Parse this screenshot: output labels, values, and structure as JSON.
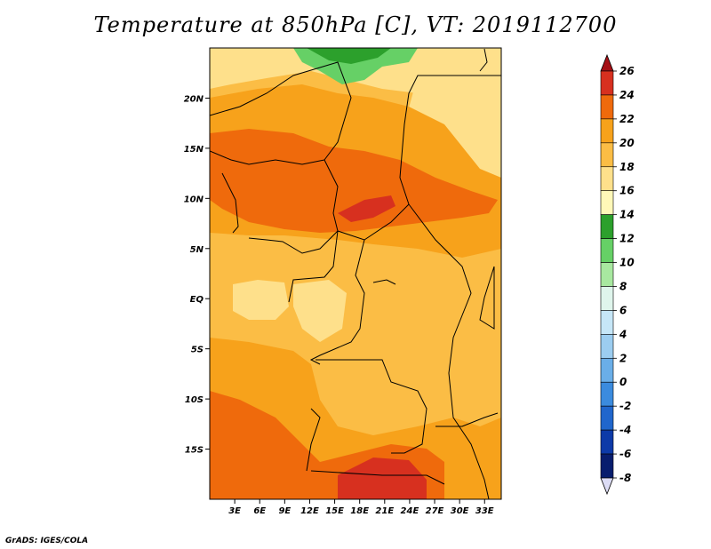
{
  "title": "Temperature at 850hPa [C], VT: 2019112700",
  "credit": "GrADS: IGES/COLA",
  "map": {
    "lon_range": [
      0,
      35
    ],
    "lat_range": [
      -20,
      25
    ],
    "lon_ticks": [
      "3E",
      "6E",
      "9E",
      "12E",
      "15E",
      "18E",
      "21E",
      "24E",
      "27E",
      "30E",
      "33E"
    ],
    "lat_ticks": [
      "20N",
      "15N",
      "10N",
      "5N",
      "EQ",
      "5S",
      "10S",
      "15S"
    ]
  },
  "colorbar": {
    "labels": [
      "26",
      "24",
      "22",
      "20",
      "18",
      "16",
      "14",
      "12",
      "10",
      "8",
      "6",
      "4",
      "2",
      "0",
      "-2",
      "-4",
      "-6",
      "-8"
    ],
    "colors": [
      "#a50f15",
      "#d7301f",
      "#ef6a0c",
      "#f7a21b",
      "#fbbd45",
      "#fee08b",
      "#fff8b8",
      "#2ca02c",
      "#66d066",
      "#a8e8a0",
      "#dff5ec",
      "#c6e6f7",
      "#9ccdf0",
      "#6aaee8",
      "#3b8bde",
      "#2066cc",
      "#0d3aa8",
      "#081d6e",
      "#05104a"
    ]
  },
  "colors": {
    "base": "#fbbd45",
    "light": "#fee08b",
    "warm": "#f7a21b",
    "hot": "#ef6a0c",
    "hotter": "#d7301f",
    "green": "#2ca02c",
    "lightgreen": "#66d066"
  }
}
